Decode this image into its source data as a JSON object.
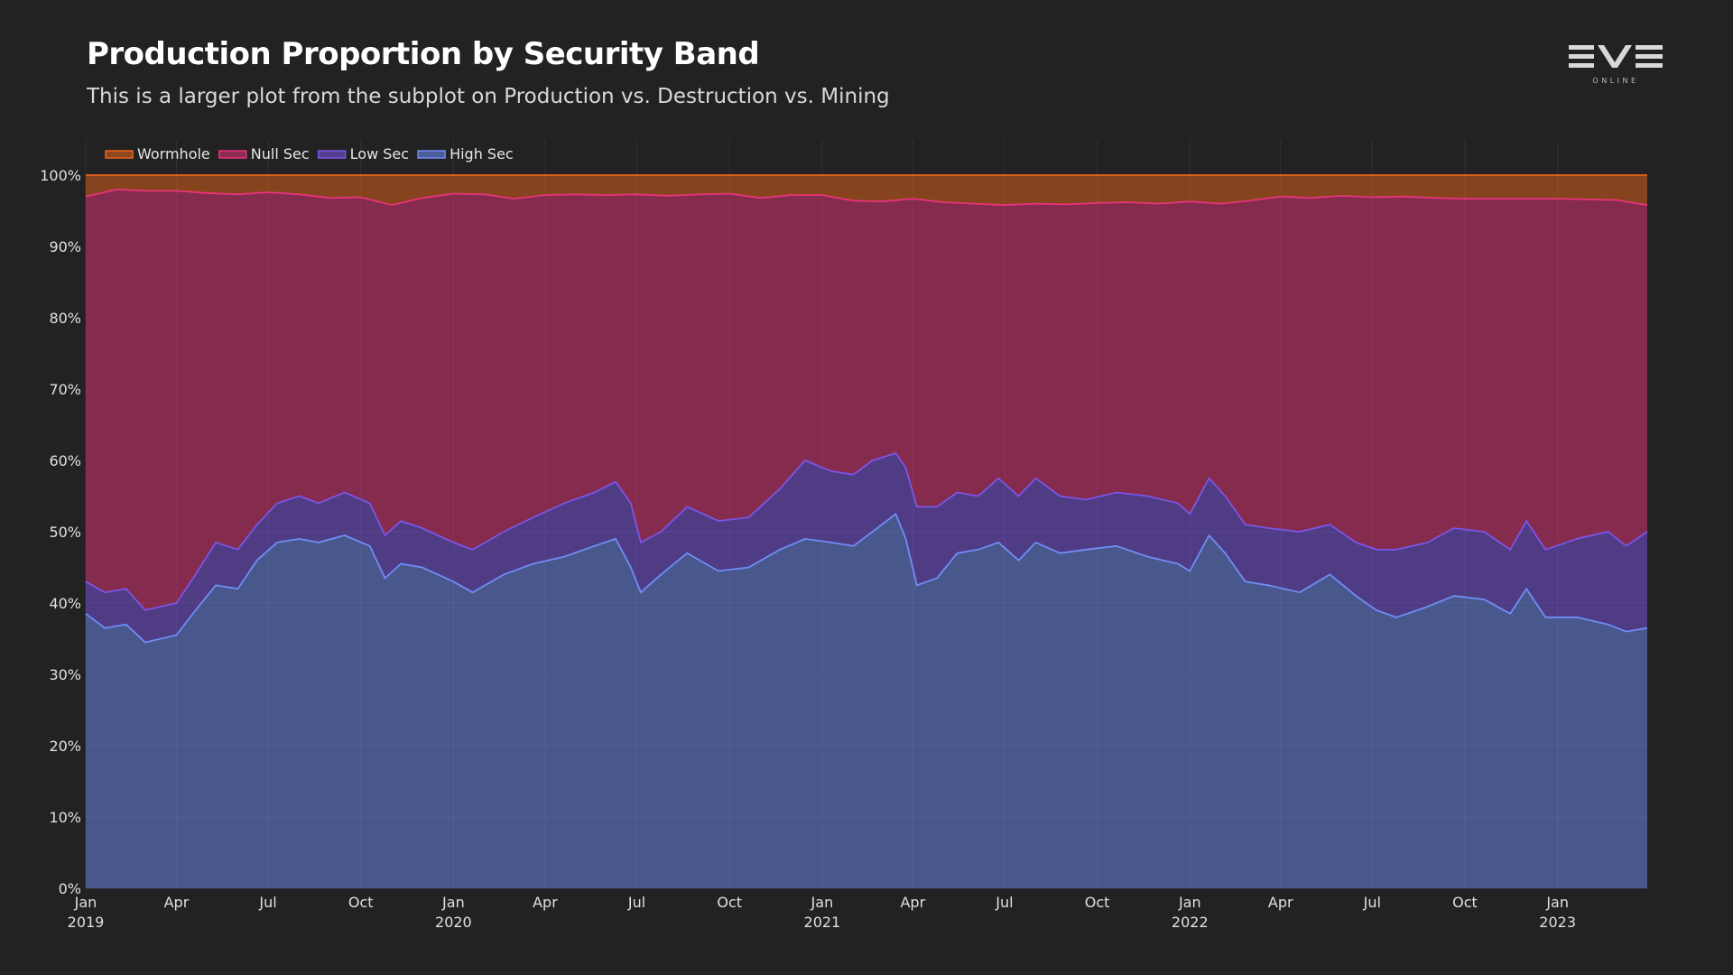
{
  "header": {
    "title": "Production Proportion by Security Band",
    "subtitle": "This is a larger plot from the subplot on Production vs. Destruction vs. Mining"
  },
  "logo": {
    "text": "EVE",
    "subtext": "ONLINE"
  },
  "colors": {
    "background": "#222222",
    "high_sec": "#6f8df5",
    "low_sec": "#7b55e6",
    "null_sec": "#e8337a",
    "wormhole": "#e9661a"
  },
  "chart_data": {
    "type": "area",
    "stacked": true,
    "normalized": true,
    "title": "Production Proportion by Security Band",
    "subtitle": "This is a larger plot from the subplot on Production vs. Destruction vs. Mining",
    "legend": {
      "placement": "top-left",
      "entries": [
        "Wormhole",
        "Null Sec",
        "Low Sec",
        "High Sec"
      ]
    },
    "grid": true,
    "ylim": [
      0,
      100
    ],
    "y_ticks": [
      0,
      10,
      20,
      30,
      40,
      50,
      60,
      70,
      80,
      90,
      100
    ],
    "y_tick_labels": [
      "0%",
      "10%",
      "20%",
      "30%",
      "40%",
      "50%",
      "60%",
      "70%",
      "80%",
      "90%",
      "100%"
    ],
    "xlim": [
      "2019-01-01",
      "2023-03-31"
    ],
    "x_ticks": [
      {
        "date": "2019-01-01",
        "label": "Jan",
        "year": "2019"
      },
      {
        "date": "2019-04-01",
        "label": "Apr",
        "year": ""
      },
      {
        "date": "2019-07-01",
        "label": "Jul",
        "year": ""
      },
      {
        "date": "2019-10-01",
        "label": "Oct",
        "year": ""
      },
      {
        "date": "2020-01-01",
        "label": "Jan",
        "year": "2020"
      },
      {
        "date": "2020-04-01",
        "label": "Apr",
        "year": ""
      },
      {
        "date": "2020-07-01",
        "label": "Jul",
        "year": ""
      },
      {
        "date": "2020-10-01",
        "label": "Oct",
        "year": ""
      },
      {
        "date": "2021-01-01",
        "label": "Jan",
        "year": "2021"
      },
      {
        "date": "2021-04-01",
        "label": "Apr",
        "year": ""
      },
      {
        "date": "2021-07-01",
        "label": "Jul",
        "year": ""
      },
      {
        "date": "2021-10-01",
        "label": "Oct",
        "year": ""
      },
      {
        "date": "2022-01-01",
        "label": "Jan",
        "year": "2022"
      },
      {
        "date": "2022-04-01",
        "label": "Apr",
        "year": ""
      },
      {
        "date": "2022-07-01",
        "label": "Jul",
        "year": ""
      },
      {
        "date": "2022-10-01",
        "label": "Oct",
        "year": ""
      },
      {
        "date": "2023-01-01",
        "label": "Jan",
        "year": "2023"
      }
    ],
    "series": [
      {
        "name": "High Sec",
        "color": "#6f8df5",
        "points": [
          [
            "2019-01-01",
            38.5
          ],
          [
            "2019-01-20",
            36.5
          ],
          [
            "2019-02-10",
            37
          ],
          [
            "2019-03-01",
            34.5
          ],
          [
            "2019-04-01",
            35.5
          ],
          [
            "2019-04-20",
            39
          ],
          [
            "2019-05-10",
            42.5
          ],
          [
            "2019-06-01",
            42
          ],
          [
            "2019-06-20",
            46
          ],
          [
            "2019-07-10",
            48.5
          ],
          [
            "2019-08-01",
            49
          ],
          [
            "2019-08-20",
            48.5
          ],
          [
            "2019-09-15",
            49.5
          ],
          [
            "2019-10-10",
            48
          ],
          [
            "2019-10-25",
            43.5
          ],
          [
            "2019-11-10",
            45.5
          ],
          [
            "2019-12-01",
            45
          ],
          [
            "2020-01-01",
            43
          ],
          [
            "2020-01-20",
            41.5
          ],
          [
            "2020-02-20",
            44
          ],
          [
            "2020-03-20",
            45.5
          ],
          [
            "2020-04-20",
            46.5
          ],
          [
            "2020-05-20",
            48
          ],
          [
            "2020-06-10",
            49
          ],
          [
            "2020-06-25",
            45
          ],
          [
            "2020-07-05",
            41.5
          ],
          [
            "2020-07-25",
            44
          ],
          [
            "2020-08-20",
            47
          ],
          [
            "2020-09-20",
            44.5
          ],
          [
            "2020-10-20",
            45
          ],
          [
            "2020-11-20",
            47.5
          ],
          [
            "2020-12-15",
            49
          ],
          [
            "2021-01-10",
            48.5
          ],
          [
            "2021-02-01",
            48
          ],
          [
            "2021-02-20",
            50
          ],
          [
            "2021-03-15",
            52.5
          ],
          [
            "2021-03-25",
            49
          ],
          [
            "2021-04-05",
            42.5
          ],
          [
            "2021-04-25",
            43.5
          ],
          [
            "2021-05-15",
            47
          ],
          [
            "2021-06-05",
            47.5
          ],
          [
            "2021-06-25",
            48.5
          ],
          [
            "2021-07-15",
            46
          ],
          [
            "2021-08-01",
            48.5
          ],
          [
            "2021-08-25",
            47
          ],
          [
            "2021-09-20",
            47.5
          ],
          [
            "2021-10-20",
            48
          ],
          [
            "2021-11-20",
            46.5
          ],
          [
            "2021-12-20",
            45.5
          ],
          [
            "2022-01-01",
            44.5
          ],
          [
            "2022-01-20",
            49.5
          ],
          [
            "2022-02-05",
            47
          ],
          [
            "2022-02-25",
            43
          ],
          [
            "2022-03-20",
            42.5
          ],
          [
            "2022-04-20",
            41.5
          ],
          [
            "2022-05-20",
            44
          ],
          [
            "2022-06-15",
            41
          ],
          [
            "2022-07-05",
            39
          ],
          [
            "2022-07-25",
            38
          ],
          [
            "2022-08-25",
            39.5
          ],
          [
            "2022-09-20",
            41
          ],
          [
            "2022-10-20",
            40.5
          ],
          [
            "2022-11-15",
            38.5
          ],
          [
            "2022-12-01",
            42
          ],
          [
            "2022-12-20",
            38
          ],
          [
            "2023-01-20",
            38
          ],
          [
            "2023-02-20",
            37
          ],
          [
            "2023-03-10",
            36
          ],
          [
            "2023-03-31",
            36.5
          ]
        ]
      },
      {
        "name": "Low Sec",
        "color": "#7b55e6",
        "points": [
          [
            "2019-01-01",
            43
          ],
          [
            "2019-01-20",
            41.5
          ],
          [
            "2019-02-10",
            42
          ],
          [
            "2019-03-01",
            39
          ],
          [
            "2019-04-01",
            40
          ],
          [
            "2019-04-20",
            44
          ],
          [
            "2019-05-10",
            48.5
          ],
          [
            "2019-06-01",
            47.5
          ],
          [
            "2019-06-20",
            51
          ],
          [
            "2019-07-10",
            54
          ],
          [
            "2019-08-01",
            55
          ],
          [
            "2019-08-20",
            54
          ],
          [
            "2019-09-15",
            55.5
          ],
          [
            "2019-10-10",
            54
          ],
          [
            "2019-10-25",
            49.5
          ],
          [
            "2019-11-10",
            51.5
          ],
          [
            "2019-12-01",
            50.5
          ],
          [
            "2020-01-01",
            48.5
          ],
          [
            "2020-01-20",
            47.5
          ],
          [
            "2020-02-20",
            50
          ],
          [
            "2020-03-20",
            52
          ],
          [
            "2020-04-20",
            54
          ],
          [
            "2020-05-20",
            55.5
          ],
          [
            "2020-06-10",
            57
          ],
          [
            "2020-06-25",
            54
          ],
          [
            "2020-07-05",
            48.5
          ],
          [
            "2020-07-25",
            50
          ],
          [
            "2020-08-20",
            53.5
          ],
          [
            "2020-09-20",
            51.5
          ],
          [
            "2020-10-20",
            52
          ],
          [
            "2020-11-20",
            56
          ],
          [
            "2020-12-15",
            60
          ],
          [
            "2021-01-10",
            58.5
          ],
          [
            "2021-02-01",
            58
          ],
          [
            "2021-02-20",
            60
          ],
          [
            "2021-03-15",
            61
          ],
          [
            "2021-03-25",
            59
          ],
          [
            "2021-04-05",
            53.5
          ],
          [
            "2021-04-25",
            53.5
          ],
          [
            "2021-05-15",
            55.5
          ],
          [
            "2021-06-05",
            55
          ],
          [
            "2021-06-25",
            57.5
          ],
          [
            "2021-07-15",
            55
          ],
          [
            "2021-08-01",
            57.5
          ],
          [
            "2021-08-25",
            55
          ],
          [
            "2021-09-20",
            54.5
          ],
          [
            "2021-10-20",
            55.5
          ],
          [
            "2021-11-20",
            55
          ],
          [
            "2021-12-20",
            54
          ],
          [
            "2022-01-01",
            52.5
          ],
          [
            "2022-01-20",
            57.5
          ],
          [
            "2022-02-05",
            55
          ],
          [
            "2022-02-25",
            51
          ],
          [
            "2022-03-20",
            50.5
          ],
          [
            "2022-04-20",
            50
          ],
          [
            "2022-05-20",
            51
          ],
          [
            "2022-06-15",
            48.5
          ],
          [
            "2022-07-05",
            47.5
          ],
          [
            "2022-07-25",
            47.5
          ],
          [
            "2022-08-25",
            48.5
          ],
          [
            "2022-09-20",
            50.5
          ],
          [
            "2022-10-20",
            50
          ],
          [
            "2022-11-15",
            47.5
          ],
          [
            "2022-12-01",
            51.5
          ],
          [
            "2022-12-20",
            47.5
          ],
          [
            "2023-01-20",
            49
          ],
          [
            "2023-02-20",
            50
          ],
          [
            "2023-03-10",
            48
          ],
          [
            "2023-03-31",
            50
          ]
        ]
      },
      {
        "name": "Null Sec",
        "color": "#e8337a",
        "points": [
          [
            "2019-01-01",
            97
          ],
          [
            "2019-02-01",
            98
          ],
          [
            "2019-03-01",
            97.8
          ],
          [
            "2019-04-01",
            97.8
          ],
          [
            "2019-05-01",
            97.5
          ],
          [
            "2019-06-01",
            97.3
          ],
          [
            "2019-07-01",
            97.6
          ],
          [
            "2019-08-01",
            97.3
          ],
          [
            "2019-09-01",
            96.8
          ],
          [
            "2019-10-01",
            96.9
          ],
          [
            "2019-11-01",
            95.8
          ],
          [
            "2019-12-01",
            96.8
          ],
          [
            "2020-01-01",
            97.4
          ],
          [
            "2020-02-01",
            97.3
          ],
          [
            "2020-03-01",
            96.7
          ],
          [
            "2020-04-01",
            97.2
          ],
          [
            "2020-05-01",
            97.3
          ],
          [
            "2020-06-01",
            97.2
          ],
          [
            "2020-07-01",
            97.3
          ],
          [
            "2020-08-01",
            97.1
          ],
          [
            "2020-09-01",
            97.3
          ],
          [
            "2020-10-01",
            97.4
          ],
          [
            "2020-11-01",
            96.8
          ],
          [
            "2020-12-01",
            97.2
          ],
          [
            "2021-01-01",
            97.2
          ],
          [
            "2021-02-01",
            96.4
          ],
          [
            "2021-03-01",
            96.3
          ],
          [
            "2021-04-01",
            96.7
          ],
          [
            "2021-05-01",
            96.2
          ],
          [
            "2021-06-01",
            96
          ],
          [
            "2021-07-01",
            95.8
          ],
          [
            "2021-08-01",
            96
          ],
          [
            "2021-09-01",
            95.9
          ],
          [
            "2021-10-01",
            96.1
          ],
          [
            "2021-11-01",
            96.2
          ],
          [
            "2021-12-01",
            96
          ],
          [
            "2022-01-01",
            96.3
          ],
          [
            "2022-02-01",
            96
          ],
          [
            "2022-03-01",
            96.4
          ],
          [
            "2022-04-01",
            97
          ],
          [
            "2022-05-01",
            96.8
          ],
          [
            "2022-06-01",
            97.1
          ],
          [
            "2022-07-01",
            96.9
          ],
          [
            "2022-08-01",
            97
          ],
          [
            "2022-09-01",
            96.8
          ],
          [
            "2022-10-01",
            96.7
          ],
          [
            "2022-11-01",
            96.7
          ],
          [
            "2022-12-01",
            96.7
          ],
          [
            "2023-01-01",
            96.7
          ],
          [
            "2023-02-01",
            96.6
          ],
          [
            "2023-03-01",
            96.5
          ],
          [
            "2023-03-31",
            95.8
          ]
        ]
      },
      {
        "name": "Wormhole",
        "color": "#e9661a",
        "points": [
          [
            "2019-01-01",
            100
          ],
          [
            "2023-03-31",
            100
          ]
        ]
      }
    ]
  }
}
